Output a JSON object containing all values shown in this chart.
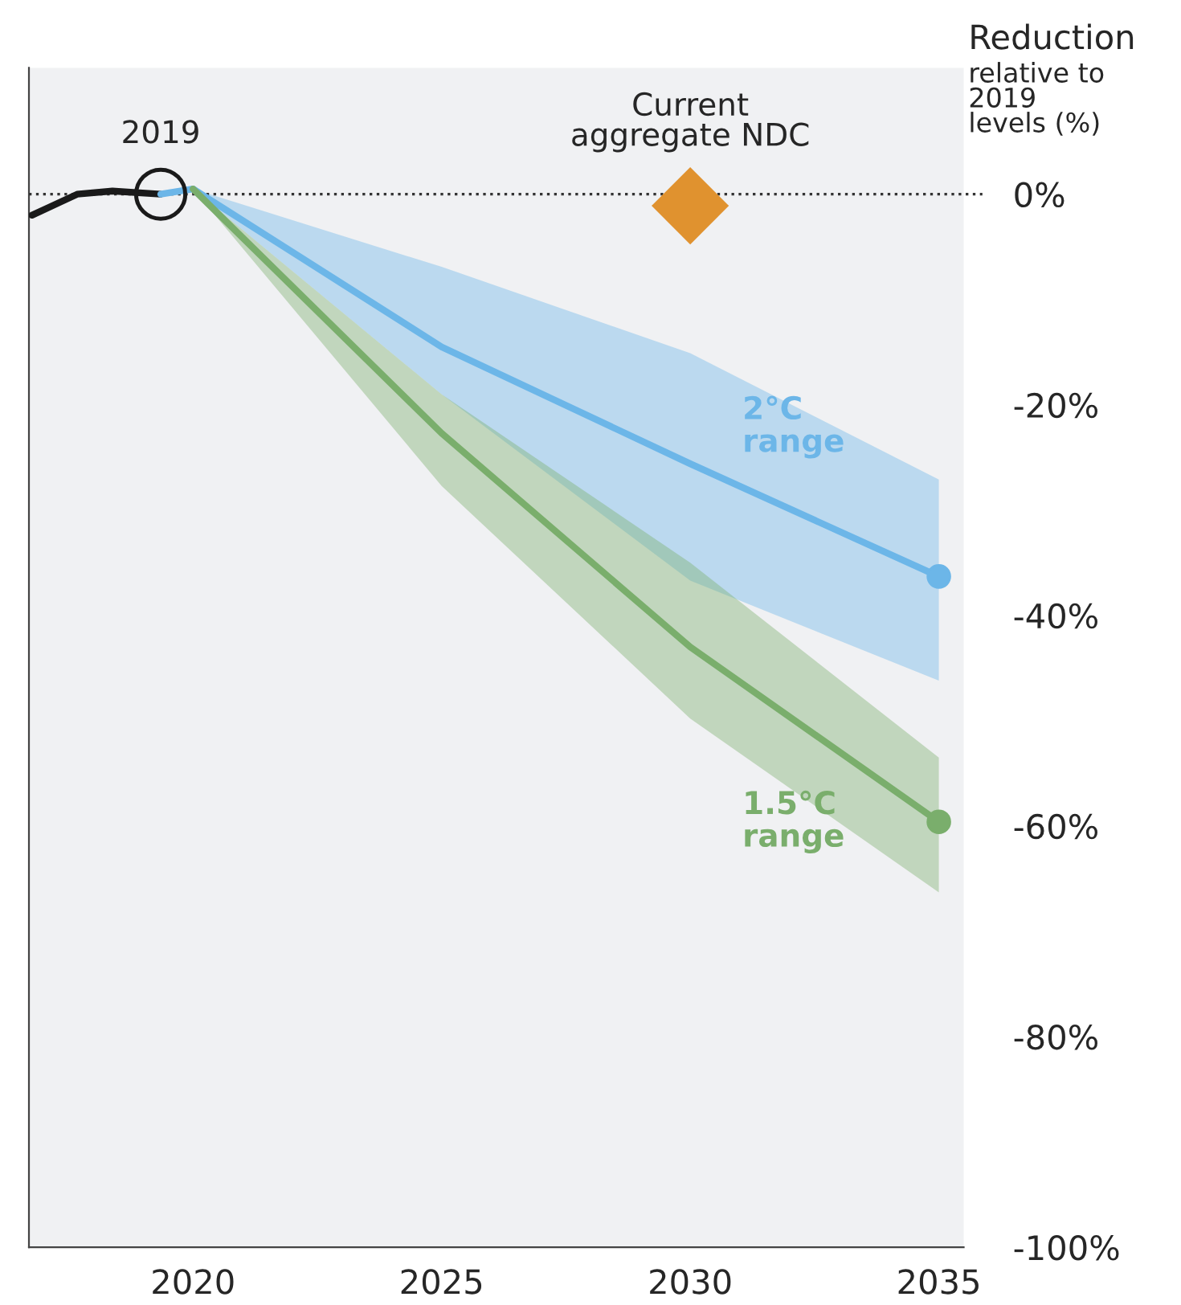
{
  "chart_data": {
    "type": "line",
    "ylabel": "Reduction",
    "series": [
      {
        "color": "#1a1a1a",
        "x": [
          2016.76,
          2017.67,
          2018.38,
          2019.35
        ],
        "values": [
          -2.0,
          0,
          0.3,
          0
        ]
      },
      {
        "name": "2°C range",
        "color": "#6cb6e8",
        "x": [
          2019.35,
          2020,
          2025,
          2030,
          2035
        ],
        "values": [
          0,
          0.5,
          -14.5,
          -25.6,
          -36.3
        ],
        "lower": [
          0,
          0.5,
          -19,
          -36.7,
          -46.2
        ],
        "upper": [
          0,
          0.5,
          -6.9,
          -15.1,
          -27.1
        ]
      },
      {
        "name": "1.5°C range",
        "color": "#7aae6c",
        "x": [
          2020,
          2025,
          2030,
          2035
        ],
        "values": [
          0.5,
          -22.7,
          -43,
          -59.6
        ],
        "lower": [
          0.5,
          -27.7,
          -49.8,
          -66.3
        ],
        "upper": [
          0.5,
          -19,
          -35,
          -53.5
        ]
      },
      {
        "type": "scatter",
        "color": "#e0922f",
        "x": [
          2030
        ],
        "values": [
          -1.1
        ],
        "marker": "diamond"
      }
    ],
    "xlim": [
      2016.7,
      2035.5
    ],
    "xticks": [
      2020,
      2025,
      2030,
      2035
    ],
    "ylim": [
      -100,
      12
    ],
    "yticks": [
      {
        "value": 0,
        "label": "0%"
      },
      {
        "value": -20,
        "label": "-20%"
      },
      {
        "value": -40,
        "label": "-40%"
      },
      {
        "value": -60,
        "label": "-60%"
      },
      {
        "value": -80,
        "label": "-80%"
      },
      {
        "value": -100,
        "label": "-100%"
      }
    ],
    "ref_lines": [
      {
        "axis": "y",
        "value": 0,
        "line_style": "dotted",
        "color": "#333333"
      }
    ],
    "annotations": [
      {
        "text": "2019",
        "x": 2019.35,
        "y": 0
      },
      {
        "text": "Current\naggregate NDC",
        "x": 2030,
        "y": -1.1
      },
      "relative to\n2019\nlevels (%)"
    ],
    "grid": false,
    "legend": false
  }
}
